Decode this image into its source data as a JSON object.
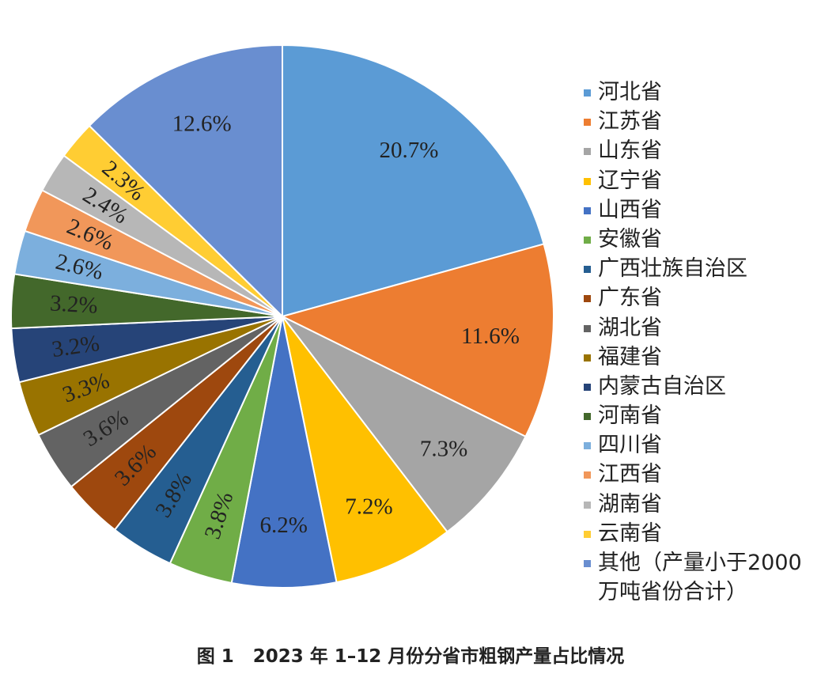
{
  "chart_data": {
    "type": "pie",
    "caption": "图 1   2023 年 1–12 月份分省市粗钢产量占比情况",
    "legend_position": "right",
    "slices": [
      {
        "name": "河北省",
        "value": 20.7,
        "label": "20.7%",
        "color": "#5B9BD5"
      },
      {
        "name": "江苏省",
        "value": 11.6,
        "label": "11.6%",
        "color": "#ED7D31"
      },
      {
        "name": "山东省",
        "value": 7.3,
        "label": "7.3%",
        "color": "#A5A5A5"
      },
      {
        "name": "辽宁省",
        "value": 7.2,
        "label": "7.2%",
        "color": "#FFC000"
      },
      {
        "name": "山西省",
        "value": 6.2,
        "label": "6.2%",
        "color": "#4472C4"
      },
      {
        "name": "安徽省",
        "value": 3.8,
        "label": "3.8%",
        "color": "#70AD47"
      },
      {
        "name": "广西壮族自治区",
        "value": 3.8,
        "label": "3.8%",
        "color": "#255E91"
      },
      {
        "name": "广东省",
        "value": 3.6,
        "label": "3.6%",
        "color": "#9E480E"
      },
      {
        "name": "湖北省",
        "value": 3.6,
        "label": "3.6%",
        "color": "#636363"
      },
      {
        "name": "福建省",
        "value": 3.3,
        "label": "3.3%",
        "color": "#997300"
      },
      {
        "name": "内蒙古自治区",
        "value": 3.2,
        "label": "3.2%",
        "color": "#264478"
      },
      {
        "name": "河南省",
        "value": 3.2,
        "label": "3.2%",
        "color": "#43682B"
      },
      {
        "name": "四川省",
        "value": 2.6,
        "label": "2.6%",
        "color": "#7CAFDD"
      },
      {
        "name": "江西省",
        "value": 2.6,
        "label": "2.6%",
        "color": "#F1975A"
      },
      {
        "name": "湖南省",
        "value": 2.4,
        "label": "2.4%",
        "color": "#B7B7B7"
      },
      {
        "name": "云南省",
        "value": 2.3,
        "label": "2.3%",
        "color": "#FFCD33"
      },
      {
        "name": "其他（产量小于2000 万吨省份合计）",
        "value": 12.6,
        "label": "12.6%",
        "color": "#698ED0"
      }
    ]
  }
}
